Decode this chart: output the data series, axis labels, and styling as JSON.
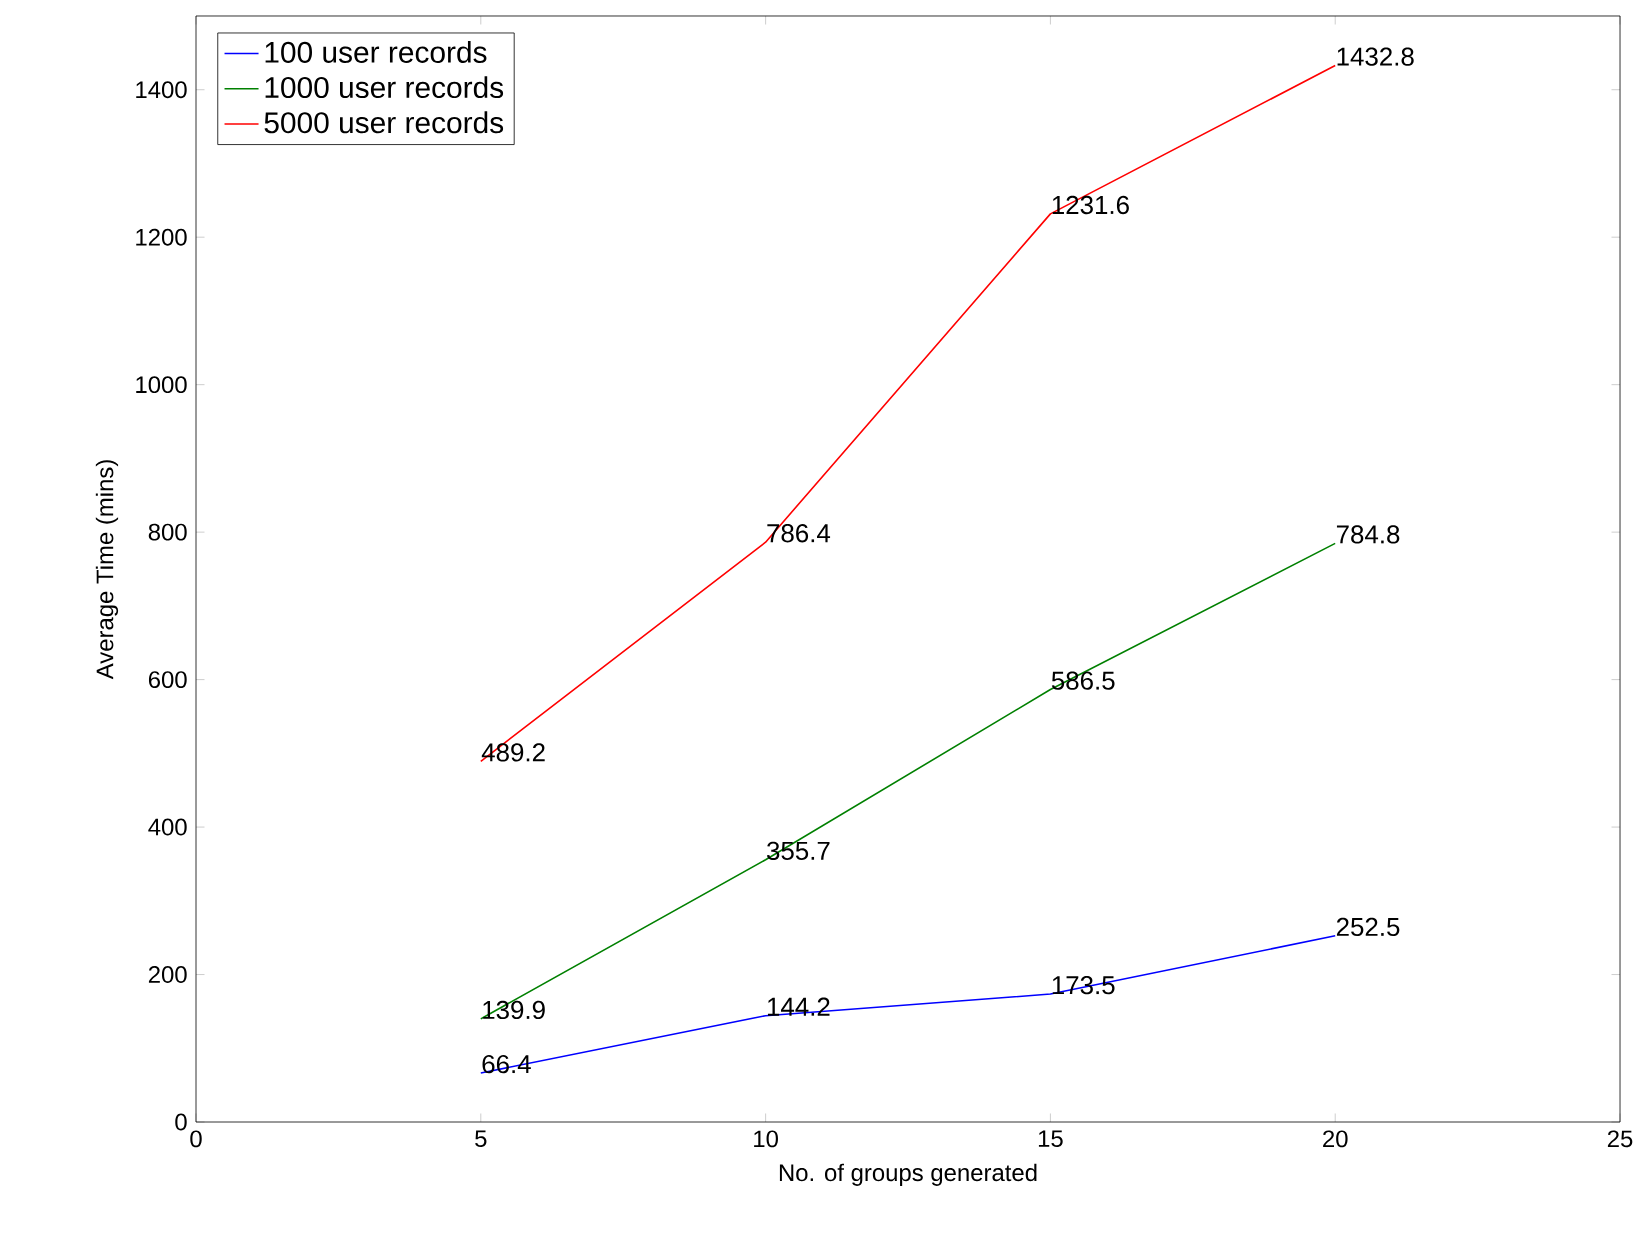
{
  "chart_data": {
    "type": "line",
    "xlabel": "No. of groups generated",
    "ylabel": "Average Time (mins)",
    "x": [
      5,
      10,
      15,
      20
    ],
    "series": [
      {
        "name": "100 user records",
        "color": "#0000ff",
        "values": [
          66.4,
          144.2,
          173.5,
          252.5
        ]
      },
      {
        "name": "1000 user records",
        "color": "#008000",
        "values": [
          139.9,
          355.7,
          586.5,
          784.8
        ]
      },
      {
        "name": "5000 user records",
        "color": "#ff0000",
        "values": [
          489.2,
          786.4,
          1231.6,
          1432.8
        ]
      }
    ],
    "xlim": [
      0,
      25
    ],
    "xticks": [
      0,
      5,
      10,
      15,
      20,
      25
    ],
    "ylim": [
      0,
      1500
    ],
    "yticks": [
      0,
      200,
      400,
      600,
      800,
      1000,
      1200,
      1400
    ],
    "grid": false,
    "legend": "top left",
    "marker": "none",
    "line_style": "solid",
    "data_labels": true
  }
}
